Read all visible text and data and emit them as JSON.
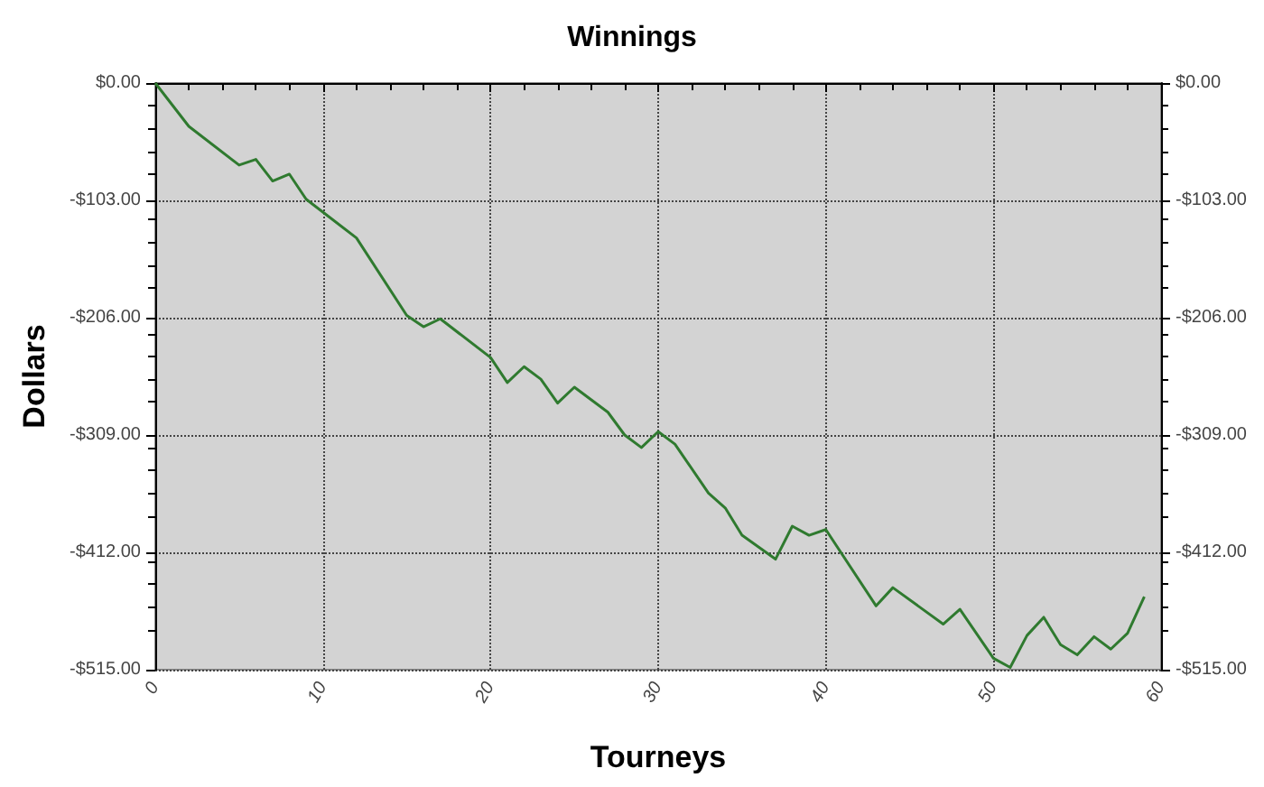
{
  "chart_data": {
    "type": "line",
    "title": "Winnings",
    "xlabel": "Tourneys",
    "ylabel": "Dollars",
    "series": [
      {
        "color": "#2f7a2f",
        "x": [
          0,
          2,
          5,
          6,
          7,
          8,
          9,
          12,
          15,
          16,
          17,
          20,
          21,
          22,
          23,
          24,
          25,
          27,
          28,
          29,
          30,
          31,
          33,
          34,
          35,
          37,
          38,
          39,
          40,
          43,
          44,
          47,
          48,
          50,
          51,
          52,
          53,
          54,
          55,
          56,
          57,
          58,
          59
        ],
        "values": [
          0,
          -38,
          -72,
          -67,
          -86,
          -80,
          -102,
          -136,
          -204,
          -214,
          -207,
          -241,
          -263,
          -249,
          -260,
          -281,
          -267,
          -289,
          -309,
          -320,
          -306,
          -317,
          -360,
          -373,
          -397,
          -418,
          -389,
          -397,
          -392,
          -459,
          -443,
          -475,
          -462,
          -505,
          -513,
          -485,
          -469,
          -493,
          -502,
          -486,
          -497,
          -483,
          -451
        ]
      }
    ],
    "xlim": [
      0,
      60
    ],
    "xticks": [
      0,
      10,
      20,
      30,
      40,
      50,
      60
    ],
    "ylim": [
      -515,
      0
    ],
    "yticks": [
      {
        "value": -515,
        "label": "-$515.00"
      },
      {
        "value": -412,
        "label": "-$412.00"
      },
      {
        "value": -309,
        "label": "-$309.00"
      },
      {
        "value": -206,
        "label": "-$206.00"
      },
      {
        "value": -103,
        "label": "-$103.00"
      },
      {
        "value": 0,
        "label": "$0.00"
      }
    ],
    "y2lim": [
      -515,
      0
    ],
    "y2ticks": [
      {
        "value": -515,
        "label": "-$515.00"
      },
      {
        "value": -412,
        "label": "-$412.00"
      },
      {
        "value": -309,
        "label": "-$309.00"
      },
      {
        "value": -206,
        "label": "-$206.00"
      },
      {
        "value": -103,
        "label": "-$103.00"
      },
      {
        "value": 0,
        "label": "$0.00"
      }
    ],
    "grid": true,
    "marker": "none",
    "line_style": "solid"
  }
}
